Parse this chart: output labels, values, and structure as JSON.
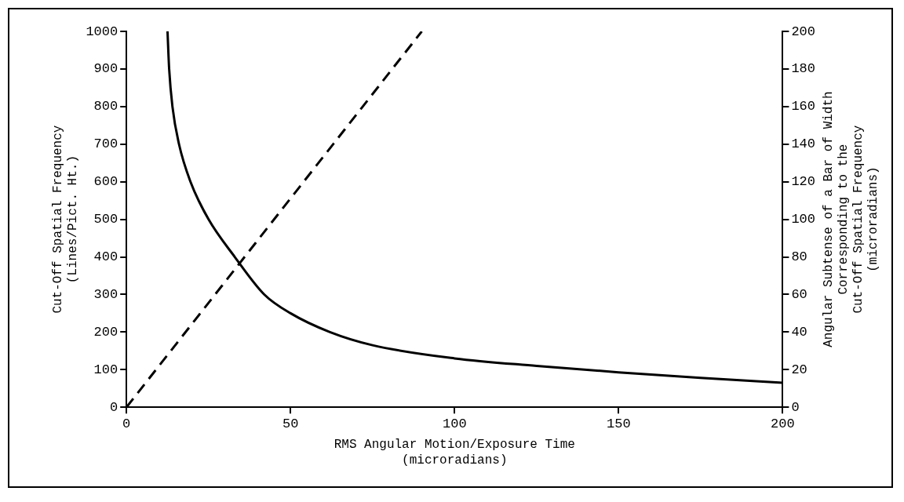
{
  "chart_data": {
    "type": "line",
    "xlabel": "RMS Angular Motion/Exposure Time\n(microradians)",
    "ylabel": "Cut-Off Spatial Frequency\n(Lines/Pict. Ht.)",
    "y2label": "Angular Subtense of a Bar of Width\nCorresponding to the\nCut-Off Spatial Frequency\n(microradians)",
    "xlim": [
      0,
      200
    ],
    "xticks": [
      0,
      50,
      100,
      150,
      200
    ],
    "ylim": [
      0,
      1000
    ],
    "yticks": [
      0,
      100,
      200,
      300,
      400,
      500,
      600,
      700,
      800,
      900,
      1000
    ],
    "y2lim": [
      0,
      200
    ],
    "y2ticks": [
      0,
      20,
      40,
      60,
      80,
      100,
      120,
      140,
      160,
      180,
      200
    ],
    "grid": false,
    "legend": false,
    "marker": "none",
    "series": [
      {
        "color": "#000000",
        "line_style": "solid",
        "x": [
          12.5,
          13,
          14,
          16,
          19.5,
          25,
          33,
          42,
          50,
          62,
          75,
          100,
          125,
          150,
          175,
          200
        ],
        "values": [
          1000,
          900,
          800,
          700,
          600,
          500,
          400,
          300,
          250,
          200,
          165,
          130,
          110,
          93,
          78,
          65
        ]
      },
      {
        "color": "#000000",
        "line_style": "dashed",
        "axis": "y2",
        "x": [
          0,
          90
        ],
        "values": [
          0,
          200
        ]
      }
    ]
  }
}
